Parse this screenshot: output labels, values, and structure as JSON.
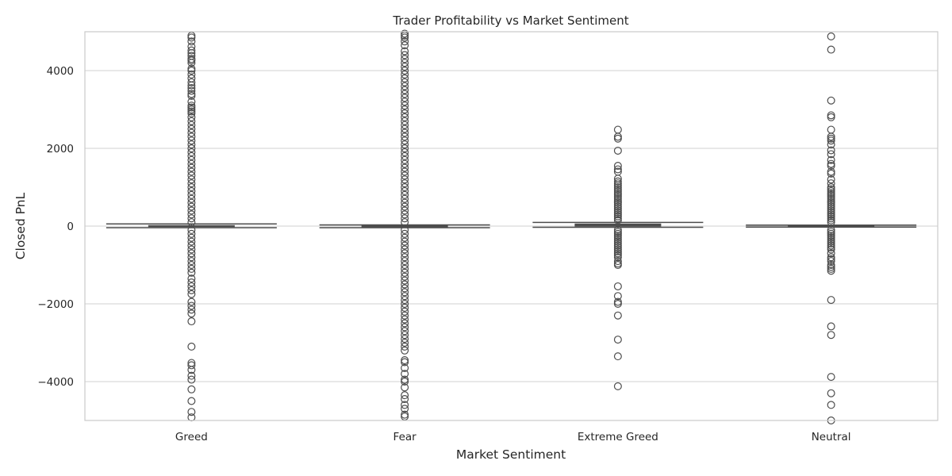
{
  "chart_data": {
    "type": "box",
    "title": "Trader Profitability vs Market Sentiment",
    "xlabel": "Market Sentiment",
    "ylabel": "Closed PnL",
    "ylim": [
      -5000,
      5000
    ],
    "yticks": [
      4000,
      2000,
      0,
      -2000,
      -4000
    ],
    "ytick_labels": [
      "4000",
      "2000",
      "0",
      "−2000",
      "−4000"
    ],
    "grid": true,
    "colors": {
      "box": "#4d4d4d",
      "grid": "#d0d0d0",
      "frame": "#cccccc"
    },
    "categories": [
      "Greed",
      "Fear",
      "Extreme Greed",
      "Neutral"
    ],
    "boxes": [
      {
        "category": "Greed",
        "q1": -5,
        "median": 0,
        "q3": 10,
        "whisker_low": -40,
        "whisker_high": 55,
        "outliers": [
          4900,
          4850,
          4750,
          4620,
          4520,
          4450,
          4380,
          4300,
          4260,
          4200,
          4050,
          4000,
          3900,
          3800,
          3700,
          3620,
          3550,
          3480,
          3400,
          3350,
          3200,
          3100,
          3050,
          3000,
          2950,
          2900,
          2800,
          2700,
          2600,
          2500,
          2400,
          2300,
          2200,
          2100,
          2000,
          1900,
          1800,
          1700,
          1600,
          1500,
          1400,
          1300,
          1200,
          1100,
          1000,
          900,
          800,
          700,
          600,
          500,
          400,
          300,
          200,
          100,
          -100,
          -200,
          -300,
          -400,
          -500,
          -600,
          -700,
          -800,
          -900,
          -1000,
          -1100,
          -1200,
          -1350,
          -1450,
          -1550,
          -1650,
          -1750,
          -1950,
          -2050,
          -2150,
          -2250,
          -2450,
          -3100,
          -3520,
          -3580,
          -3700,
          -3850,
          -3950,
          -4200,
          -4500,
          -4780,
          -4920
        ]
      },
      {
        "category": "Fear",
        "q1": -15,
        "median": -5,
        "q3": 5,
        "whisker_low": -40,
        "whisker_high": 30,
        "outliers": [
          4950,
          4900,
          4850,
          4750,
          4650,
          4500,
          4400,
          4300,
          4200,
          4100,
          4000,
          3900,
          3800,
          3700,
          3600,
          3500,
          3400,
          3300,
          3200,
          3100,
          3000,
          2900,
          2800,
          2700,
          2600,
          2500,
          2400,
          2300,
          2200,
          2100,
          2000,
          1900,
          1800,
          1700,
          1600,
          1500,
          1400,
          1300,
          1200,
          1100,
          1000,
          900,
          800,
          700,
          600,
          500,
          400,
          300,
          200,
          100,
          -100,
          -200,
          -300,
          -400,
          -500,
          -600,
          -700,
          -800,
          -900,
          -1000,
          -1100,
          -1200,
          -1300,
          -1400,
          -1500,
          -1600,
          -1700,
          -1800,
          -1900,
          -2000,
          -2100,
          -2200,
          -2300,
          -2400,
          -2500,
          -2600,
          -2700,
          -2800,
          -2900,
          -3000,
          -3100,
          -3200,
          -3450,
          -3500,
          -3650,
          -3800,
          -3950,
          -4000,
          -4150,
          -4350,
          -4450,
          -4600,
          -4700,
          -4850,
          -4900
        ]
      },
      {
        "category": "Extreme Greed",
        "q1": 0,
        "median": 20,
        "q3": 50,
        "whisker_low": -30,
        "whisker_high": 95,
        "outliers": [
          2480,
          2300,
          2250,
          1940,
          1550,
          1460,
          1400,
          1220,
          1150,
          1100,
          1050,
          1000,
          950,
          900,
          850,
          800,
          750,
          700,
          650,
          600,
          550,
          500,
          450,
          400,
          350,
          300,
          250,
          200,
          150,
          -100,
          -150,
          -200,
          -250,
          -300,
          -350,
          -400,
          -450,
          -500,
          -550,
          -600,
          -650,
          -700,
          -750,
          -800,
          -900,
          -960,
          -1000,
          -1550,
          -1800,
          -1950,
          -2000,
          -2300,
          -2920,
          -3350,
          -4120
        ]
      },
      {
        "category": "Neutral",
        "q1": -5,
        "median": 0,
        "q3": 5,
        "whisker_low": -25,
        "whisker_high": 25,
        "outliers": [
          4880,
          4540,
          3230,
          2850,
          2800,
          2480,
          2300,
          2250,
          2200,
          2100,
          1950,
          1850,
          1700,
          1600,
          1550,
          1400,
          1350,
          1200,
          1100,
          1000,
          950,
          900,
          850,
          800,
          750,
          700,
          650,
          600,
          550,
          500,
          450,
          400,
          350,
          300,
          250,
          200,
          150,
          100,
          -100,
          -150,
          -200,
          -250,
          -300,
          -350,
          -400,
          -450,
          -500,
          -550,
          -600,
          -700,
          -800,
          -850,
          -900,
          -1000,
          -1050,
          -1100,
          -1150,
          -1900,
          -2580,
          -2800,
          -3880,
          -4300,
          -4600,
          -5000
        ]
      }
    ]
  }
}
